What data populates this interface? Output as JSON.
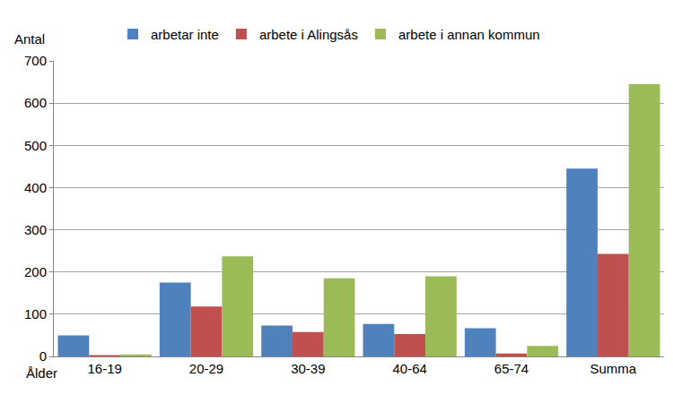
{
  "chart_data": {
    "type": "bar",
    "xlabel": "Ålder",
    "ylabel": "Antal",
    "categories": [
      "16-19",
      "20-29",
      "30-39",
      "40-64",
      "65-74",
      "Summa"
    ],
    "series": [
      {
        "name": "arbetar inte",
        "color": "#4f81bd",
        "values": [
          50,
          175,
          73,
          77,
          67,
          445
        ]
      },
      {
        "name": "arbete i Alingsås",
        "color": "#c0504d",
        "values": [
          3,
          118,
          58,
          53,
          7,
          243
        ]
      },
      {
        "name": "arbete i annan kommun",
        "color": "#9bbb59",
        "values": [
          5,
          237,
          185,
          190,
          25,
          645
        ]
      }
    ],
    "ylim": [
      0,
      700
    ],
    "yticks": [
      0,
      100,
      200,
      300,
      400,
      500,
      600,
      700
    ],
    "grid": true,
    "legend": "top"
  }
}
